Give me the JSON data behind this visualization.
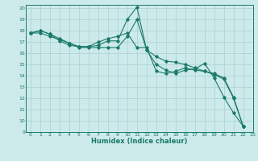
{
  "xlabel": "Humidex (Indice chaleur)",
  "ylabel": "",
  "bg_color": "#cdeaea",
  "line_color": "#1a7a6a",
  "grid_color": "#aed4d4",
  "xlim": [
    -0.5,
    23
  ],
  "ylim": [
    9,
    20.3
  ],
  "xticks": [
    0,
    1,
    2,
    3,
    4,
    5,
    6,
    7,
    8,
    9,
    10,
    11,
    12,
    13,
    14,
    15,
    16,
    17,
    18,
    19,
    20,
    21,
    22,
    23
  ],
  "yticks": [
    9,
    10,
    11,
    12,
    13,
    14,
    15,
    16,
    17,
    18,
    19,
    20
  ],
  "series": [
    [
      17.8,
      18.0,
      17.7,
      17.1,
      16.7,
      16.6,
      16.6,
      16.7,
      17.1,
      17.1,
      19.0,
      20.1,
      16.3,
      15.0,
      14.5,
      14.2,
      14.5,
      14.6,
      15.1,
      13.8,
      12.1,
      10.7,
      9.5
    ],
    [
      17.8,
      18.0,
      17.7,
      17.3,
      16.9,
      16.5,
      16.5,
      16.5,
      16.5,
      16.5,
      17.5,
      19.0,
      16.3,
      15.7,
      15.3,
      15.2,
      15.0,
      14.7,
      14.4,
      14.1,
      13.7,
      12.0,
      9.5
    ],
    [
      17.8,
      17.8,
      17.5,
      17.2,
      16.9,
      16.6,
      16.6,
      17.0,
      17.3,
      17.5,
      17.8,
      16.5,
      16.5,
      14.4,
      14.2,
      14.4,
      14.7,
      14.5,
      14.4,
      14.2,
      13.8,
      12.1,
      9.5
    ]
  ],
  "series_x": [
    0,
    1,
    2,
    3,
    4,
    5,
    6,
    7,
    8,
    9,
    10,
    11,
    12,
    13,
    14,
    15,
    16,
    17,
    18,
    19,
    20,
    21,
    22
  ]
}
